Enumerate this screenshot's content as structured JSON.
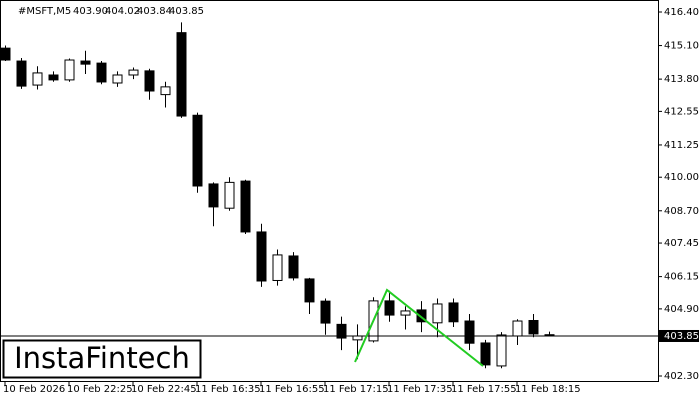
{
  "header": {
    "symbol": "#MSFT,M5",
    "ohlc": [
      "403.90",
      "404.02",
      "403.84",
      "403.85"
    ]
  },
  "logo": "InstaFintech",
  "chart_data": {
    "type": "candlestick",
    "categories": [
      "10 Feb 2026",
      null,
      null,
      null,
      "10 Feb 22:25",
      null,
      null,
      null,
      "10 Feb 22:45",
      null,
      null,
      null,
      "11 Feb 16:35",
      null,
      null,
      null,
      "11 Feb 16:55",
      null,
      null,
      null,
      "11 Feb 17:15",
      null,
      null,
      null,
      "11 Feb 17:35",
      null,
      null,
      null,
      "11 Feb 17:55",
      null,
      null,
      null,
      "11 Feb 18:15",
      null,
      null
    ],
    "series": [
      {
        "open": [
          415.0,
          414.5,
          413.57,
          413.96,
          413.77,
          414.5,
          414.42,
          413.65,
          413.96,
          414.12,
          413.2,
          415.6,
          412.4,
          409.74,
          408.8,
          409.85,
          407.88,
          406.0,
          406.95,
          406.06,
          405.2,
          404.3,
          403.7,
          403.66,
          405.21,
          404.66,
          404.86,
          404.36,
          405.13,
          404.43,
          403.58,
          402.69,
          403.85,
          404.45,
          403.9
        ],
        "high": [
          415.1,
          414.62,
          414.3,
          414.1,
          414.6,
          414.9,
          414.5,
          414.1,
          414.25,
          414.2,
          413.7,
          416.0,
          412.5,
          409.8,
          410.0,
          409.9,
          408.2,
          407.2,
          407.1,
          406.1,
          405.3,
          404.6,
          404.3,
          405.35,
          405.6,
          405.0,
          405.2,
          405.3,
          405.3,
          404.7,
          403.7,
          404.0,
          404.5,
          404.7,
          404.02
        ],
        "low": [
          414.5,
          413.42,
          413.4,
          413.7,
          413.7,
          414.0,
          413.6,
          413.5,
          413.8,
          413.0,
          412.7,
          412.3,
          409.4,
          408.1,
          408.7,
          407.8,
          405.75,
          405.8,
          406.0,
          404.7,
          403.9,
          403.3,
          402.95,
          403.6,
          404.4,
          404.1,
          404.0,
          403.8,
          404.2,
          403.3,
          402.6,
          402.6,
          403.5,
          403.8,
          403.84
        ],
        "close": [
          414.54,
          413.53,
          414.04,
          413.77,
          414.54,
          414.38,
          413.69,
          413.96,
          414.15,
          413.34,
          413.5,
          412.37,
          409.66,
          408.85,
          409.8,
          407.88,
          405.98,
          406.99,
          406.1,
          405.17,
          404.35,
          403.77,
          403.85,
          405.21,
          404.66,
          404.82,
          404.4,
          405.09,
          404.4,
          403.57,
          402.73,
          403.89,
          404.43,
          403.93,
          403.85
        ]
      }
    ],
    "up_color": "#ffffff",
    "down_color": "#000000",
    "ylim": [
      402.3,
      416.4
    ],
    "yticks": [
      {
        "value": 402.3,
        "label": "402.30"
      },
      {
        "value": 404.9,
        "label": "404.90"
      },
      {
        "value": 406.15,
        "label": "406.15"
      },
      {
        "value": 407.45,
        "label": "407.45"
      },
      {
        "value": 408.7,
        "label": "408.70"
      },
      {
        "value": 410.0,
        "label": "410.00"
      },
      {
        "value": 411.25,
        "label": "411.25"
      },
      {
        "value": 412.55,
        "label": "412.55"
      },
      {
        "value": 413.8,
        "label": "413.80"
      },
      {
        "value": 415.1,
        "label": "415.10"
      },
      {
        "value": 416.4,
        "label": "416.40"
      }
    ],
    "last_price": {
      "value": 403.85,
      "label": "403.85"
    }
  }
}
